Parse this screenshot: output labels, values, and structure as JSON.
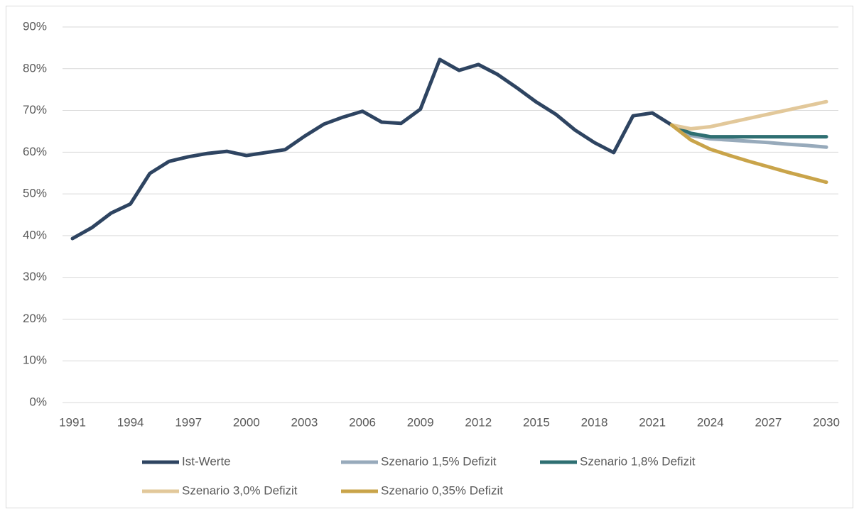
{
  "chart_data": {
    "type": "line",
    "x": [
      1991,
      1992,
      1993,
      1994,
      1995,
      1996,
      1997,
      1998,
      1999,
      2000,
      2001,
      2002,
      2003,
      2004,
      2005,
      2006,
      2007,
      2008,
      2009,
      2010,
      2011,
      2012,
      2013,
      2014,
      2015,
      2016,
      2017,
      2018,
      2019,
      2020,
      2021,
      2022,
      2023,
      2024,
      2025,
      2026,
      2027,
      2028,
      2029,
      2030
    ],
    "series": [
      {
        "name": "Ist-Werte",
        "color": "#2e4461",
        "values": [
          39.3,
          41.9,
          45.4,
          47.6,
          54.9,
          57.8,
          58.9,
          59.7,
          60.2,
          59.2,
          59.9,
          60.6,
          63.8,
          66.7,
          68.4,
          69.8,
          67.2,
          66.9,
          70.3,
          82.2,
          79.6,
          81.0,
          78.6,
          75.4,
          72.0,
          69.1,
          65.3,
          62.3,
          59.9,
          68.7,
          69.4,
          66.5,
          null,
          null,
          null,
          null,
          null,
          null,
          null,
          null
        ]
      },
      {
        "name": "Szenario 1,5% Defizit",
        "color": "#97aabb",
        "values": [
          null,
          null,
          null,
          null,
          null,
          null,
          null,
          null,
          null,
          null,
          null,
          null,
          null,
          null,
          null,
          null,
          null,
          null,
          null,
          null,
          null,
          null,
          null,
          null,
          null,
          null,
          null,
          null,
          null,
          null,
          null,
          66.5,
          64.0,
          63.2,
          62.9,
          62.6,
          62.3,
          61.9,
          61.6,
          61.2
        ]
      },
      {
        "name": "Szenario 1,8% Defizit",
        "color": "#2e6f72",
        "values": [
          null,
          null,
          null,
          null,
          null,
          null,
          null,
          null,
          null,
          null,
          null,
          null,
          null,
          null,
          null,
          null,
          null,
          null,
          null,
          null,
          null,
          null,
          null,
          null,
          null,
          null,
          null,
          null,
          null,
          null,
          null,
          66.5,
          64.5,
          63.7,
          63.7,
          63.7,
          63.7,
          63.7,
          63.7,
          63.7
        ]
      },
      {
        "name": "Szenario 3,0% Defizit",
        "color": "#e2c89a",
        "values": [
          null,
          null,
          null,
          null,
          null,
          null,
          null,
          null,
          null,
          null,
          null,
          null,
          null,
          null,
          null,
          null,
          null,
          null,
          null,
          null,
          null,
          null,
          null,
          null,
          null,
          null,
          null,
          null,
          null,
          null,
          null,
          66.5,
          65.6,
          66.1,
          67.1,
          68.1,
          69.1,
          70.1,
          71.1,
          72.1
        ]
      },
      {
        "name": "Szenario 0,35% Defizit",
        "color": "#c9a44a",
        "values": [
          null,
          null,
          null,
          null,
          null,
          null,
          null,
          null,
          null,
          null,
          null,
          null,
          null,
          null,
          null,
          null,
          null,
          null,
          null,
          null,
          null,
          null,
          null,
          null,
          null,
          null,
          null,
          null,
          null,
          null,
          null,
          66.5,
          62.9,
          60.7,
          59.2,
          57.8,
          56.5,
          55.2,
          54.0,
          52.8
        ]
      }
    ],
    "xlim": [
      1991,
      2030
    ],
    "xticks": [
      1991,
      1994,
      1997,
      2000,
      2003,
      2006,
      2009,
      2012,
      2015,
      2018,
      2021,
      2024,
      2027,
      2030
    ],
    "ylim": [
      0,
      90
    ],
    "yticks": [
      {
        "value": 0,
        "label": "0%"
      },
      {
        "value": 10,
        "label": "10%"
      },
      {
        "value": 20,
        "label": "20%"
      },
      {
        "value": 30,
        "label": "30%"
      },
      {
        "value": 40,
        "label": "40%"
      },
      {
        "value": 50,
        "label": "50%"
      },
      {
        "value": 60,
        "label": "60%"
      },
      {
        "value": 70,
        "label": "70%"
      },
      {
        "value": 80,
        "label": "80%"
      },
      {
        "value": 90,
        "label": "90%"
      }
    ],
    "grid": true
  }
}
